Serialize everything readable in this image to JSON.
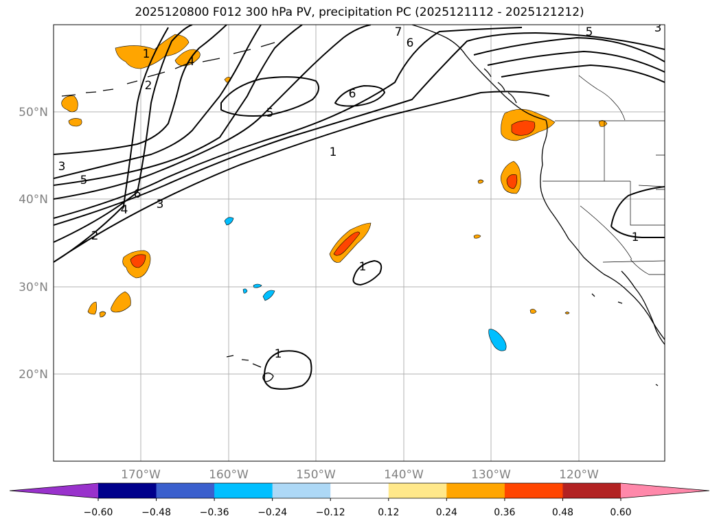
{
  "title": "2025120800 F012 300 hPa PV, precipitation PC (2025121112 - 2025121212)",
  "lat_ticks": [
    "50°N",
    "40°N",
    "30°N",
    "20°N"
  ],
  "lon_ticks": [
    "170°W",
    "160°W",
    "150°W",
    "140°W",
    "130°W",
    "120°W"
  ],
  "colorbar": {
    "colors": [
      "#9932cc",
      "#00008b",
      "#3a5fcd",
      "#00bfff",
      "#add8f6",
      "#ffffff",
      "#ffe88a",
      "#ffa500",
      "#ff4500",
      "#b22222",
      "#ff88aa"
    ],
    "labels": [
      "−0.60",
      "−0.48",
      "−0.36",
      "−0.24",
      "−0.12",
      "0.12",
      "0.24",
      "0.36",
      "0.48",
      "0.60"
    ]
  },
  "contour_labels": {
    "c1_top": "1",
    "c2_left": "2",
    "c3_left": "3",
    "c4_left": "4",
    "c5_left": "5",
    "c6_left": "6",
    "c4_upper": "4",
    "c2_upper": "2",
    "c5_mid": "5",
    "c6_mid": "6",
    "c7_top": "7",
    "c6_top": "6",
    "c5_right": "5",
    "c3_right": "3",
    "c1_mid": "1",
    "c1_small": "1",
    "c1_hawaii": "1",
    "c1_east": "1"
  }
}
